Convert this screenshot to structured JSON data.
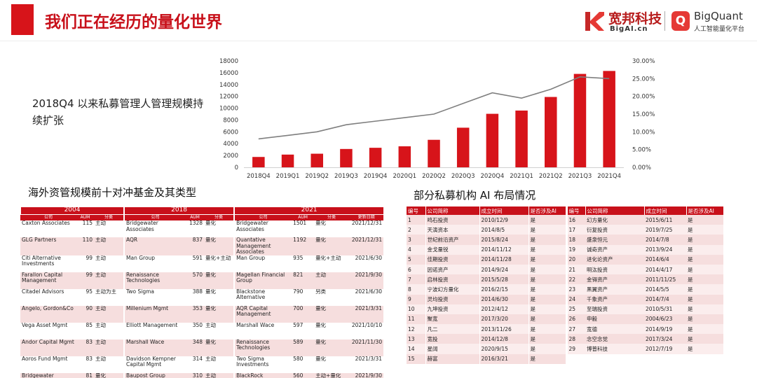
{
  "header": {
    "title": "我们正在经历的量化世界"
  },
  "logos": {
    "kuanbang": {
      "cn": "宽邦科技",
      "en": "BigAI.cn",
      "color": "#b71c1c"
    },
    "bigquant": {
      "en": "BigQuant",
      "cn": "人工智能量化平台",
      "mark": "Q",
      "color": "#e53935"
    }
  },
  "chart_desc": "2018Q4 以来私募管理人管理规模持续扩张",
  "chart_data": {
    "type": "bar",
    "categories": [
      "2018Q4",
      "2019Q1",
      "2019Q2",
      "2019Q3",
      "2019Q4",
      "2020Q1",
      "2020Q2",
      "2020Q3",
      "2020Q4",
      "2021Q1",
      "2021Q2",
      "2021Q3",
      "2021Q4"
    ],
    "series": [
      {
        "type": "bar",
        "color": "#d7141a",
        "values": [
          1750,
          2150,
          2300,
          3100,
          3300,
          3550,
          4650,
          6700,
          9050,
          9600,
          11900,
          15800,
          16300
        ]
      },
      {
        "type": "line",
        "axis": "right",
        "color": "#7f7f7f",
        "values": [
          8.0,
          9.0,
          10.0,
          12.0,
          13.0,
          14.0,
          15.0,
          18.0,
          21.0,
          19.5,
          22.0,
          25.5,
          25.0
        ]
      }
    ],
    "y_left": {
      "min": 0,
      "max": 18000,
      "ticks": [
        "0",
        "2000",
        "4000",
        "6000",
        "8000",
        "10000",
        "12000",
        "14000",
        "16000",
        "18000"
      ]
    },
    "y_right": {
      "min": 0,
      "max": 30,
      "ticks": [
        "0.00%",
        "5.00%",
        "10.00%",
        "15.00%",
        "20.00%",
        "25.00%",
        "30.00%"
      ]
    },
    "grid": false
  },
  "hedge": {
    "title": "海外资管规模前十对冲基金及其类型",
    "years": [
      "2004",
      "2018",
      "2021"
    ],
    "cols04": [
      "公司",
      "AUM",
      "分类"
    ],
    "cols18": [
      "公司",
      "AUM",
      "分类"
    ],
    "cols21": [
      "公司",
      "AUM",
      "分类",
      "更新日期"
    ],
    "rows": [
      {
        "c04": "Caxton Associates",
        "a04": "115",
        "t04": "主动",
        "c18": "Bridgewater Associates",
        "a18": "1328",
        "t18": "量化",
        "c21": "Bridgewater Associates",
        "a21": "1501",
        "t21": "量化",
        "d21": "2021/12/31"
      },
      {
        "c04": "GLG Partners",
        "a04": "110",
        "t04": "主动",
        "c18": "AQR",
        "a18": "837",
        "t18": "量化",
        "c21": "Quantative Management Associates",
        "a21": "1192",
        "t21": "量化",
        "d21": "2021/12/31"
      },
      {
        "c04": "Citi Alternative Investments",
        "a04": "99",
        "t04": "主动",
        "c18": "Man Group",
        "a18": "591",
        "t18": "量化+主动",
        "c21": "Man Group",
        "a21": "935",
        "t21": "量化+主动",
        "d21": "2021/6/30"
      },
      {
        "c04": "Farallon Capital Management",
        "a04": "99",
        "t04": "主动",
        "c18": "Renaissance Technologies",
        "a18": "570",
        "t18": "量化",
        "c21": "Magellan Financial Group",
        "a21": "821",
        "t21": "主动",
        "d21": "2021/9/30"
      },
      {
        "c04": "Citadel Advisors",
        "a04": "95",
        "t04": "主动为主",
        "c18": "Two Sigma",
        "a18": "388",
        "t18": "量化",
        "c21": "Blackstone Alternative",
        "a21": "790",
        "t21": "另类",
        "d21": "2021/6/30"
      },
      {
        "c04": "Angelo, Gordon&Co",
        "a04": "90",
        "t04": "主动",
        "c18": "Millenium Mgmt",
        "a18": "353",
        "t18": "量化",
        "c21": "AQR Capital Management",
        "a21": "700",
        "t21": "量化",
        "d21": "2021/3/31"
      },
      {
        "c04": "Vega Asset Mgmt",
        "a04": "85",
        "t04": "主动",
        "c18": "Elliott Management",
        "a18": "350",
        "t18": "主动",
        "c21": "Marshall Wace",
        "a21": "597",
        "t21": "量化",
        "d21": "2021/10/10"
      },
      {
        "c04": "Andor Capital Mgmt",
        "a04": "83",
        "t04": "主动",
        "c18": "Marshall Wace",
        "a18": "348",
        "t18": "量化",
        "c21": "Renaissance Technologies",
        "a21": "589",
        "t21": "量化",
        "d21": "2021/11/30"
      },
      {
        "c04": "Aoros Fund Mgmt",
        "a04": "83",
        "t04": "主动",
        "c18": "Davidson Kempner Capital Mgmt",
        "a18": "314",
        "t18": "主动",
        "c21": "Two Sigma Investments",
        "a21": "580",
        "t21": "量化",
        "d21": "2021/3/31"
      },
      {
        "c04": "Bridgewater Associates",
        "a04": "81",
        "t04": "量化",
        "c18": "Baupost Group",
        "a18": "310",
        "t18": "主动",
        "c21": "BlackRock",
        "a21": "560",
        "t21": "主动+量化",
        "d21": "2021/9/30"
      }
    ]
  },
  "ai": {
    "title": "部分私募机构 AI 布局情况",
    "headers": [
      "编号",
      "公司简称",
      "成立时间",
      "是否涉及AI"
    ],
    "left": [
      [
        "1",
        "鸣石投资",
        "2010/12/9",
        "是"
      ],
      [
        "2",
        "天演资本",
        "2014/8/5",
        "是"
      ],
      [
        "3",
        "世纪前沿资产",
        "2015/8/24",
        "是"
      ],
      [
        "4",
        "金戈量锐",
        "2014/11/12",
        "是"
      ],
      [
        "5",
        "佳期投资",
        "2014/11/28",
        "是"
      ],
      [
        "6",
        "因诺资产",
        "2014/9/24",
        "是"
      ],
      [
        "7",
        "启林投资",
        "2015/5/28",
        "是"
      ],
      [
        "8",
        "宁波幻方量化",
        "2016/2/15",
        "是"
      ],
      [
        "9",
        "灵均投资",
        "2014/6/30",
        "是"
      ],
      [
        "10",
        "九坤投资",
        "2012/4/12",
        "是"
      ],
      [
        "11",
        "聚宽",
        "2017/3/20",
        "是"
      ],
      [
        "12",
        "凡二",
        "2013/11/26",
        "是"
      ],
      [
        "13",
        "宽投",
        "2014/12/8",
        "是"
      ],
      [
        "14",
        "星阔",
        "2020/9/15",
        "是"
      ],
      [
        "15",
        "赫富",
        "2016/3/21",
        "是"
      ]
    ],
    "right": [
      [
        "16",
        "幻方量化",
        "2015/6/11",
        "是"
      ],
      [
        "17",
        "衍复投资",
        "2019/7/25",
        "是"
      ],
      [
        "18",
        "盛泉恒元",
        "2014/7/8",
        "是"
      ],
      [
        "19",
        "诚奇资产",
        "2013/9/24",
        "是"
      ],
      [
        "20",
        "进化论资产",
        "2014/6/4",
        "是"
      ],
      [
        "21",
        "明汯投资",
        "2014/4/17",
        "是"
      ],
      [
        "22",
        "金锝资产",
        "2011/11/25",
        "是"
      ],
      [
        "23",
        "黑翼资产",
        "2014/5/5",
        "是"
      ],
      [
        "24",
        "千象资产",
        "2014/7/4",
        "是"
      ],
      [
        "25",
        "至瑞投资",
        "2010/5/31",
        "是"
      ],
      [
        "26",
        "申毅",
        "2004/6/23",
        "是"
      ],
      [
        "27",
        "宽德",
        "2014/9/19",
        "是"
      ],
      [
        "28",
        "念空念觉",
        "2017/3/24",
        "是"
      ],
      [
        "29",
        "博普科技",
        "2012/7/19",
        "是"
      ]
    ]
  }
}
